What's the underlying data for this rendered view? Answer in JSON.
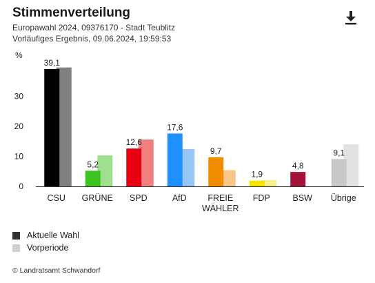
{
  "header": {
    "title": "Stimmenverteilung",
    "subtitle1": "Europawahl 2024, 09376170 - Stadt Teublitz",
    "subtitle2": "Vorläufiges Ergebnis, 09.06.2024, 19:59:53",
    "download_icon": "download-icon"
  },
  "legend": {
    "current": "Aktuelle Wahl",
    "previous": "Vorperiode"
  },
  "footer": {
    "copyright": "© Landratsamt Schwandorf"
  },
  "chart_data": {
    "type": "bar",
    "ylabel": "%",
    "ylim": [
      0,
      40
    ],
    "yticks": [
      0,
      10,
      20,
      30
    ],
    "grid": false,
    "legend_position": "bottom-left",
    "categories": [
      {
        "label": "CSU",
        "lines": [
          "CSU"
        ],
        "current": 39.1,
        "current_label": "39,1",
        "previous": 39.6,
        "color": "#000000",
        "prev_color": "#808080"
      },
      {
        "label": "GRÜNE",
        "lines": [
          "GRÜNE"
        ],
        "current": 5.2,
        "current_label": "5,2",
        "previous": 10.3,
        "color": "#3cc31e",
        "prev_color": "#9ee08e"
      },
      {
        "label": "SPD",
        "lines": [
          "SPD"
        ],
        "current": 12.6,
        "current_label": "12,6",
        "previous": 15.6,
        "color": "#e60012",
        "prev_color": "#f08080"
      },
      {
        "label": "AfD",
        "lines": [
          "AfD"
        ],
        "current": 17.6,
        "current_label": "17,6",
        "previous": 12.4,
        "color": "#1e90ff",
        "prev_color": "#96c6f5"
      },
      {
        "label": "FREIE WÄHLER",
        "lines": [
          "FREIE",
          "WÄHLER"
        ],
        "current": 9.7,
        "current_label": "9,7",
        "previous": 5.4,
        "color": "#f08c00",
        "prev_color": "#f7c68a"
      },
      {
        "label": "FDP",
        "lines": [
          "FDP"
        ],
        "current": 1.9,
        "current_label": "1,9",
        "previous": 2.1,
        "color": "#f5e400",
        "prev_color": "#f8ef8a"
      },
      {
        "label": "BSW",
        "lines": [
          "BSW"
        ],
        "current": 4.8,
        "current_label": "4,8",
        "previous": null,
        "color": "#a3123a",
        "prev_color": "#d08aa0"
      },
      {
        "label": "Übrige",
        "lines": [
          "Übrige"
        ],
        "current": 9.1,
        "current_label": "9,1",
        "previous": 14.0,
        "color": "#c8c8c8",
        "prev_color": "#e2e2e2"
      }
    ],
    "legend_colors": {
      "current": "#333333",
      "previous": "#d0d0d0"
    },
    "axis_color": "#333333",
    "text_color": "#222222"
  }
}
